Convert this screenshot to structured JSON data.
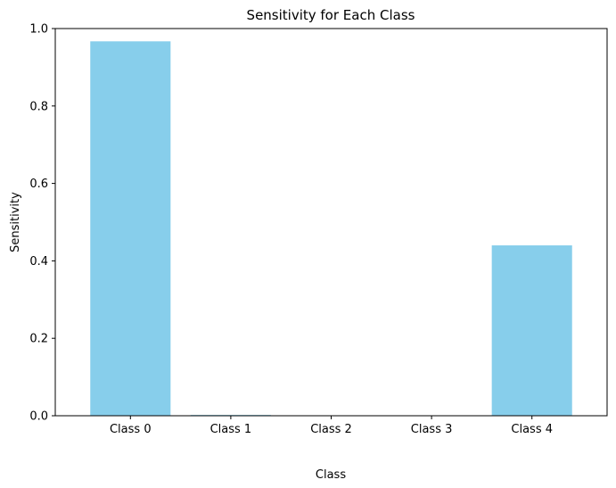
{
  "chart_data": {
    "type": "bar",
    "title": "Sensitivity for Each Class",
    "xlabel": "Class",
    "ylabel": "Sensitivity",
    "categories": [
      "Class 0",
      "Class 1",
      "Class 2",
      "Class 3",
      "Class 4"
    ],
    "values": [
      0.967,
      0.002,
      0.0,
      0.0,
      0.44
    ],
    "ylim": [
      0,
      1.0
    ],
    "yticks": [
      "0.0",
      "0.2",
      "0.4",
      "0.6",
      "0.8",
      "1.0"
    ],
    "grid": false,
    "bar_color": "#87ceeb"
  }
}
